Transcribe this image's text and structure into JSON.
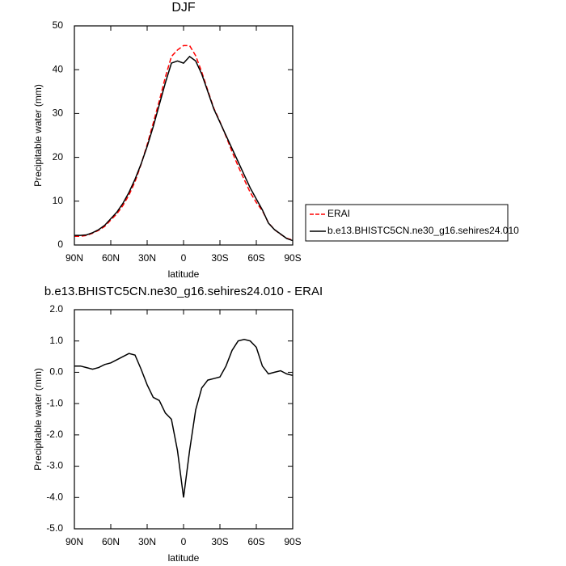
{
  "chart_data": [
    {
      "type": "line",
      "title": "DJF",
      "xlabel": "latitude",
      "ylabel": "Precipitable water (mm)",
      "x": [
        90,
        85,
        80,
        75,
        70,
        65,
        60,
        55,
        50,
        45,
        40,
        35,
        30,
        25,
        20,
        15,
        10,
        5,
        0,
        -5,
        -10,
        -15,
        -20,
        -25,
        -30,
        -35,
        -40,
        -45,
        -50,
        -55,
        -60,
        -65,
        -70,
        -75,
        -80,
        -85,
        -90
      ],
      "xlim": [
        90,
        -90
      ],
      "xticks": [
        {
          "value": 90,
          "label": "90N"
        },
        {
          "value": 60,
          "label": "60N"
        },
        {
          "value": 30,
          "label": "30N"
        },
        0,
        {
          "value": -30,
          "label": "30S"
        },
        {
          "value": -60,
          "label": "60S"
        },
        {
          "value": -90,
          "label": "90S"
        }
      ],
      "ylim": [
        0,
        50
      ],
      "yticks": [
        0,
        10,
        20,
        30,
        40,
        50
      ],
      "legend": "right",
      "series": [
        {
          "name": "ERAI",
          "color": "#ff0000",
          "dashed": true,
          "values": [
            2.0,
            2.0,
            2.15,
            2.7,
            3.35,
            4.25,
            5.7,
            7.1,
            9.0,
            11.4,
            14.45,
            18.4,
            22.9,
            27.8,
            32.9,
            38.3,
            43.0,
            44.5,
            45.5,
            45.5,
            43.2,
            39.5,
            35.25,
            31.2,
            28.15,
            24.8,
            21.3,
            18.0,
            14.95,
            12.0,
            9.7,
            7.8,
            5.05,
            3.5,
            2.45,
            1.55,
            1.1
          ]
        },
        {
          "name": "b.e13.BHISTC5CN.ne30_g16.sehires24.010",
          "color": "#000000",
          "dashed": false,
          "values": [
            2.2,
            2.2,
            2.3,
            2.8,
            3.5,
            4.5,
            6.0,
            7.5,
            9.5,
            12.0,
            15.0,
            18.5,
            22.5,
            27.0,
            32.0,
            37.0,
            41.5,
            42.0,
            41.5,
            43.0,
            42.0,
            39.0,
            35.0,
            31.0,
            28.0,
            25.0,
            22.0,
            19.0,
            16.0,
            13.0,
            10.5,
            8.0,
            5.0,
            3.5,
            2.5,
            1.5,
            1.0
          ]
        }
      ]
    },
    {
      "type": "line",
      "title": "b.e13.BHISTC5CN.ne30_g16.sehires24.010 - ERAI",
      "xlabel": "latitude",
      "ylabel": "Precipitable water (mm)",
      "x": [
        90,
        85,
        80,
        75,
        70,
        65,
        60,
        55,
        50,
        45,
        40,
        35,
        30,
        25,
        20,
        15,
        10,
        5,
        0,
        -5,
        -10,
        -15,
        -20,
        -25,
        -30,
        -35,
        -40,
        -45,
        -50,
        -55,
        -60,
        -65,
        -70,
        -75,
        -80,
        -85,
        -90
      ],
      "xlim": [
        90,
        -90
      ],
      "xticks": [
        {
          "value": 90,
          "label": "90N"
        },
        {
          "value": 60,
          "label": "60N"
        },
        {
          "value": 30,
          "label": "30N"
        },
        0,
        {
          "value": -30,
          "label": "30S"
        },
        {
          "value": -60,
          "label": "60S"
        },
        {
          "value": -90,
          "label": "90S"
        }
      ],
      "ylim": [
        -5,
        2
      ],
      "yticks": [
        {
          "value": -5,
          "label": "-5.0"
        },
        {
          "value": -4,
          "label": "-4.0"
        },
        {
          "value": -3,
          "label": "-3.0"
        },
        {
          "value": -2,
          "label": "-2.0"
        },
        {
          "value": -1,
          "label": "-1.0"
        },
        {
          "value": 0,
          "label": "0.0"
        },
        {
          "value": 1,
          "label": "1.0"
        },
        {
          "value": 2,
          "label": "2.0"
        }
      ],
      "color": "#000000",
      "values": [
        0.2,
        0.2,
        0.15,
        0.1,
        0.15,
        0.25,
        0.3,
        0.4,
        0.5,
        0.6,
        0.55,
        0.1,
        -0.4,
        -0.8,
        -0.9,
        -1.3,
        -1.5,
        -2.5,
        -4.0,
        -2.5,
        -1.2,
        -0.5,
        -0.25,
        -0.2,
        -0.15,
        0.2,
        0.7,
        1.0,
        1.05,
        1.0,
        0.8,
        0.2,
        -0.05,
        0.0,
        0.05,
        -0.05,
        -0.1
      ]
    }
  ]
}
